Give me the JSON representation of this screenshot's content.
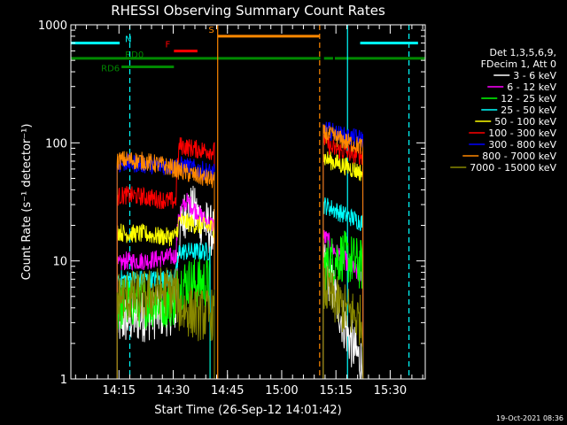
{
  "chart_data": {
    "type": "line",
    "title": "RHESSI Observing Summary Count Rates",
    "xlabel": "Start Time (26-Sep-12 14:01:42)",
    "ylabel": "Count Rate (s⁻¹ detector⁻¹)",
    "yscale": "log",
    "ylim": [
      1,
      1000
    ],
    "xlim_minutes": [
      0,
      98
    ],
    "x_ticks": [
      {
        "minute": 13.3,
        "label": "14:15"
      },
      {
        "minute": 28.3,
        "label": "14:30"
      },
      {
        "minute": 43.3,
        "label": "14:45"
      },
      {
        "minute": 58.3,
        "label": "15:00"
      },
      {
        "minute": 73.3,
        "label": "15:15"
      },
      {
        "minute": 88.3,
        "label": "15:30"
      }
    ],
    "y_ticks": [
      {
        "value": 1,
        "label": "1"
      },
      {
        "value": 10,
        "label": "10"
      },
      {
        "value": 100,
        "label": "100"
      },
      {
        "value": 1000,
        "label": "1000"
      }
    ],
    "legend_header": [
      "Det 1,3,5,6,9,",
      "FDecim 1, Att 0"
    ],
    "legend_placement": "right",
    "series": [
      {
        "name": "3 - 6 keV",
        "color": "#ffffff",
        "seg1": [
          [
            12.8,
            3
          ],
          [
            15,
            3.2
          ],
          [
            20,
            3.4
          ],
          [
            25,
            3.7
          ],
          [
            29,
            4
          ],
          [
            30,
            16
          ],
          [
            32,
            28
          ],
          [
            34,
            26
          ],
          [
            36,
            22
          ],
          [
            38,
            19
          ],
          [
            39.7,
            17
          ]
        ],
        "seg2": [
          [
            69.8,
            10
          ],
          [
            71,
            8
          ],
          [
            73,
            5
          ],
          [
            75,
            3.2
          ],
          [
            77,
            2.2
          ],
          [
            79,
            1.6
          ],
          [
            80.8,
            1.3
          ]
        ]
      },
      {
        "name": "6 - 12 keV",
        "color": "#ff00ff",
        "seg1": [
          [
            12.8,
            9
          ],
          [
            15,
            10
          ],
          [
            20,
            10
          ],
          [
            25,
            10.5
          ],
          [
            29,
            11
          ],
          [
            30,
            25
          ],
          [
            32,
            32
          ],
          [
            34,
            28
          ],
          [
            36,
            24
          ],
          [
            38,
            21
          ],
          [
            39.7,
            20
          ]
        ],
        "seg2": [
          [
            69.8,
            16
          ],
          [
            71,
            15
          ],
          [
            73,
            12
          ],
          [
            75,
            11
          ],
          [
            77,
            9
          ],
          [
            79,
            8
          ],
          [
            80.8,
            7
          ]
        ]
      },
      {
        "name": "12 - 25 keV",
        "color": "#00ff00",
        "seg1": [
          [
            12.8,
            4
          ],
          [
            15,
            4.5
          ],
          [
            20,
            4.5
          ],
          [
            25,
            4.5
          ],
          [
            29,
            4.6
          ],
          [
            30,
            6.5
          ],
          [
            35,
            6.5
          ],
          [
            38.5,
            6.5
          ]
        ],
        "seg2": [
          [
            69.8,
            9
          ],
          [
            72,
            10
          ],
          [
            75,
            11
          ],
          [
            78,
            10
          ],
          [
            80.8,
            9
          ]
        ]
      },
      {
        "name": "25 - 50 keV",
        "color": "#00ffff",
        "seg1": [
          [
            12.8,
            7
          ],
          [
            15,
            7
          ],
          [
            20,
            7
          ],
          [
            25,
            7
          ],
          [
            29,
            7.2
          ],
          [
            30,
            12
          ],
          [
            35,
            12
          ],
          [
            38.5,
            12
          ]
        ],
        "seg2": [
          [
            69.8,
            30
          ],
          [
            72,
            28
          ],
          [
            75,
            25
          ],
          [
            78,
            23
          ],
          [
            80.8,
            21
          ]
        ]
      },
      {
        "name": "50 - 100 keV",
        "color": "#ffff00",
        "seg1": [
          [
            12.8,
            18
          ],
          [
            15,
            17
          ],
          [
            20,
            17
          ],
          [
            25,
            16
          ],
          [
            29,
            16
          ],
          [
            30,
            22
          ],
          [
            35,
            20
          ],
          [
            39.7,
            19
          ]
        ],
        "seg2": [
          [
            69.8,
            75
          ],
          [
            72,
            70
          ],
          [
            75,
            65
          ],
          [
            78,
            60
          ],
          [
            80.8,
            55
          ]
        ]
      },
      {
        "name": "100 - 300 keV",
        "color": "#ff0000",
        "seg1": [
          [
            12.8,
            35
          ],
          [
            15,
            36
          ],
          [
            20,
            35
          ],
          [
            25,
            33
          ],
          [
            29,
            32
          ],
          [
            30,
            95
          ],
          [
            35,
            88
          ],
          [
            39.7,
            85
          ]
        ],
        "seg2": [
          [
            69.8,
            110
          ],
          [
            72,
            90
          ],
          [
            75,
            85
          ],
          [
            78,
            80
          ],
          [
            80.8,
            78
          ]
        ]
      },
      {
        "name": "300 - 800 keV",
        "color": "#0000ff",
        "seg1": [
          [
            12.8,
            65
          ],
          [
            15,
            68
          ],
          [
            20,
            66
          ],
          [
            25,
            64
          ],
          [
            29,
            63
          ],
          [
            30,
            65
          ],
          [
            35,
            60
          ],
          [
            39.7,
            55
          ]
        ],
        "seg2": [
          [
            69.8,
            130
          ],
          [
            72,
            125
          ],
          [
            75,
            115
          ],
          [
            78,
            110
          ],
          [
            80.8,
            108
          ]
        ]
      },
      {
        "name": "800 - 7000 keV",
        "color": "#ff8800",
        "seg1": [
          [
            12.8,
            70
          ],
          [
            15,
            72
          ],
          [
            20,
            70
          ],
          [
            25,
            65
          ],
          [
            29,
            60
          ],
          [
            30,
            58
          ],
          [
            35,
            52
          ],
          [
            39.7,
            48
          ]
        ],
        "seg2": [
          [
            69.8,
            120
          ],
          [
            72,
            115
          ],
          [
            75,
            105
          ],
          [
            78,
            98
          ],
          [
            80.8,
            92
          ]
        ]
      },
      {
        "name": "7000 - 15000 keV",
        "color": "#888800",
        "seg1": [
          [
            12.8,
            5
          ],
          [
            15,
            5
          ],
          [
            20,
            5
          ],
          [
            25,
            5.5
          ],
          [
            29,
            5.5
          ],
          [
            30,
            4
          ],
          [
            35,
            3.5
          ],
          [
            39.7,
            3.5
          ]
        ],
        "seg2": [
          [
            69.8,
            6
          ],
          [
            72,
            5
          ],
          [
            75,
            4
          ],
          [
            78,
            3.5
          ],
          [
            80.8,
            3
          ]
        ]
      }
    ],
    "flag_bars": [
      {
        "label": "N",
        "color": "#00ffff",
        "value": 700,
        "ranges": [
          [
            0,
            13.5
          ],
          [
            80,
            96
          ]
        ]
      },
      {
        "label": "S",
        "color": "#ff8800",
        "value": 800,
        "ranges": [
          [
            40.6,
            68.8
          ]
        ]
      },
      {
        "label": "F",
        "color": "#ff0000",
        "value": 600,
        "ranges": [
          [
            28.5,
            35
          ]
        ]
      },
      {
        "label": "RD0",
        "color": "#008800",
        "value": 520,
        "ranges": [
          [
            0,
            69
          ],
          [
            70,
            72.5
          ],
          [
            73,
            98
          ]
        ]
      },
      {
        "label": "RD6",
        "color": "#008800",
        "value": 440,
        "ranges": [
          [
            14,
            28.5
          ]
        ]
      }
    ],
    "vertical_lines": [
      {
        "minute": 16.3,
        "color": "#00ffff",
        "style": "dashed"
      },
      {
        "minute": 40.6,
        "color": "#ff8800",
        "style": "solid"
      },
      {
        "minute": 68.8,
        "color": "#ff8800",
        "style": "dashed"
      },
      {
        "minute": 76.5,
        "color": "#00ffff",
        "style": "solid"
      },
      {
        "minute": 93.5,
        "color": "#00ffff",
        "style": "dashed"
      }
    ],
    "footer_timestamp": "19-Oct-2021 08:36"
  }
}
